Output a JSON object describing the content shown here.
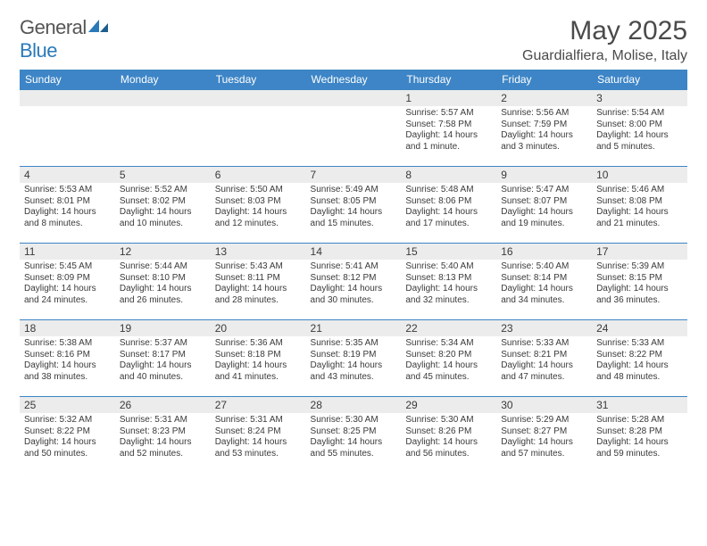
{
  "logo": {
    "word1": "General",
    "word2": "Blue"
  },
  "title": "May 2025",
  "location": "Guardialfiera, Molise, Italy",
  "weekdays": [
    "Sunday",
    "Monday",
    "Tuesday",
    "Wednesday",
    "Thursday",
    "Friday",
    "Saturday"
  ],
  "colors": {
    "header_bg": "#3d85c6",
    "header_text": "#ffffff",
    "row_border": "#3d85c6",
    "daynum_bg": "#ececec",
    "text": "#3a3a3a",
    "logo_gray": "#555555",
    "logo_blue": "#2a7ab9"
  },
  "typography": {
    "title_fontsize": 30,
    "location_fontsize": 16,
    "weekday_fontsize": 12,
    "daynum_fontsize": 12,
    "body_fontsize": 10
  },
  "grid": [
    [
      {
        "day": "",
        "lines": []
      },
      {
        "day": "",
        "lines": []
      },
      {
        "day": "",
        "lines": []
      },
      {
        "day": "",
        "lines": []
      },
      {
        "day": "1",
        "lines": [
          "Sunrise: 5:57 AM",
          "Sunset: 7:58 PM",
          "Daylight: 14 hours and 1 minute."
        ]
      },
      {
        "day": "2",
        "lines": [
          "Sunrise: 5:56 AM",
          "Sunset: 7:59 PM",
          "Daylight: 14 hours and 3 minutes."
        ]
      },
      {
        "day": "3",
        "lines": [
          "Sunrise: 5:54 AM",
          "Sunset: 8:00 PM",
          "Daylight: 14 hours and 5 minutes."
        ]
      }
    ],
    [
      {
        "day": "4",
        "lines": [
          "Sunrise: 5:53 AM",
          "Sunset: 8:01 PM",
          "Daylight: 14 hours and 8 minutes."
        ]
      },
      {
        "day": "5",
        "lines": [
          "Sunrise: 5:52 AM",
          "Sunset: 8:02 PM",
          "Daylight: 14 hours and 10 minutes."
        ]
      },
      {
        "day": "6",
        "lines": [
          "Sunrise: 5:50 AM",
          "Sunset: 8:03 PM",
          "Daylight: 14 hours and 12 minutes."
        ]
      },
      {
        "day": "7",
        "lines": [
          "Sunrise: 5:49 AM",
          "Sunset: 8:05 PM",
          "Daylight: 14 hours and 15 minutes."
        ]
      },
      {
        "day": "8",
        "lines": [
          "Sunrise: 5:48 AM",
          "Sunset: 8:06 PM",
          "Daylight: 14 hours and 17 minutes."
        ]
      },
      {
        "day": "9",
        "lines": [
          "Sunrise: 5:47 AM",
          "Sunset: 8:07 PM",
          "Daylight: 14 hours and 19 minutes."
        ]
      },
      {
        "day": "10",
        "lines": [
          "Sunrise: 5:46 AM",
          "Sunset: 8:08 PM",
          "Daylight: 14 hours and 21 minutes."
        ]
      }
    ],
    [
      {
        "day": "11",
        "lines": [
          "Sunrise: 5:45 AM",
          "Sunset: 8:09 PM",
          "Daylight: 14 hours and 24 minutes."
        ]
      },
      {
        "day": "12",
        "lines": [
          "Sunrise: 5:44 AM",
          "Sunset: 8:10 PM",
          "Daylight: 14 hours and 26 minutes."
        ]
      },
      {
        "day": "13",
        "lines": [
          "Sunrise: 5:43 AM",
          "Sunset: 8:11 PM",
          "Daylight: 14 hours and 28 minutes."
        ]
      },
      {
        "day": "14",
        "lines": [
          "Sunrise: 5:41 AM",
          "Sunset: 8:12 PM",
          "Daylight: 14 hours and 30 minutes."
        ]
      },
      {
        "day": "15",
        "lines": [
          "Sunrise: 5:40 AM",
          "Sunset: 8:13 PM",
          "Daylight: 14 hours and 32 minutes."
        ]
      },
      {
        "day": "16",
        "lines": [
          "Sunrise: 5:40 AM",
          "Sunset: 8:14 PM",
          "Daylight: 14 hours and 34 minutes."
        ]
      },
      {
        "day": "17",
        "lines": [
          "Sunrise: 5:39 AM",
          "Sunset: 8:15 PM",
          "Daylight: 14 hours and 36 minutes."
        ]
      }
    ],
    [
      {
        "day": "18",
        "lines": [
          "Sunrise: 5:38 AM",
          "Sunset: 8:16 PM",
          "Daylight: 14 hours and 38 minutes."
        ]
      },
      {
        "day": "19",
        "lines": [
          "Sunrise: 5:37 AM",
          "Sunset: 8:17 PM",
          "Daylight: 14 hours and 40 minutes."
        ]
      },
      {
        "day": "20",
        "lines": [
          "Sunrise: 5:36 AM",
          "Sunset: 8:18 PM",
          "Daylight: 14 hours and 41 minutes."
        ]
      },
      {
        "day": "21",
        "lines": [
          "Sunrise: 5:35 AM",
          "Sunset: 8:19 PM",
          "Daylight: 14 hours and 43 minutes."
        ]
      },
      {
        "day": "22",
        "lines": [
          "Sunrise: 5:34 AM",
          "Sunset: 8:20 PM",
          "Daylight: 14 hours and 45 minutes."
        ]
      },
      {
        "day": "23",
        "lines": [
          "Sunrise: 5:33 AM",
          "Sunset: 8:21 PM",
          "Daylight: 14 hours and 47 minutes."
        ]
      },
      {
        "day": "24",
        "lines": [
          "Sunrise: 5:33 AM",
          "Sunset: 8:22 PM",
          "Daylight: 14 hours and 48 minutes."
        ]
      }
    ],
    [
      {
        "day": "25",
        "lines": [
          "Sunrise: 5:32 AM",
          "Sunset: 8:22 PM",
          "Daylight: 14 hours and 50 minutes."
        ]
      },
      {
        "day": "26",
        "lines": [
          "Sunrise: 5:31 AM",
          "Sunset: 8:23 PM",
          "Daylight: 14 hours and 52 minutes."
        ]
      },
      {
        "day": "27",
        "lines": [
          "Sunrise: 5:31 AM",
          "Sunset: 8:24 PM",
          "Daylight: 14 hours and 53 minutes."
        ]
      },
      {
        "day": "28",
        "lines": [
          "Sunrise: 5:30 AM",
          "Sunset: 8:25 PM",
          "Daylight: 14 hours and 55 minutes."
        ]
      },
      {
        "day": "29",
        "lines": [
          "Sunrise: 5:30 AM",
          "Sunset: 8:26 PM",
          "Daylight: 14 hours and 56 minutes."
        ]
      },
      {
        "day": "30",
        "lines": [
          "Sunrise: 5:29 AM",
          "Sunset: 8:27 PM",
          "Daylight: 14 hours and 57 minutes."
        ]
      },
      {
        "day": "31",
        "lines": [
          "Sunrise: 5:28 AM",
          "Sunset: 8:28 PM",
          "Daylight: 14 hours and 59 minutes."
        ]
      }
    ]
  ]
}
